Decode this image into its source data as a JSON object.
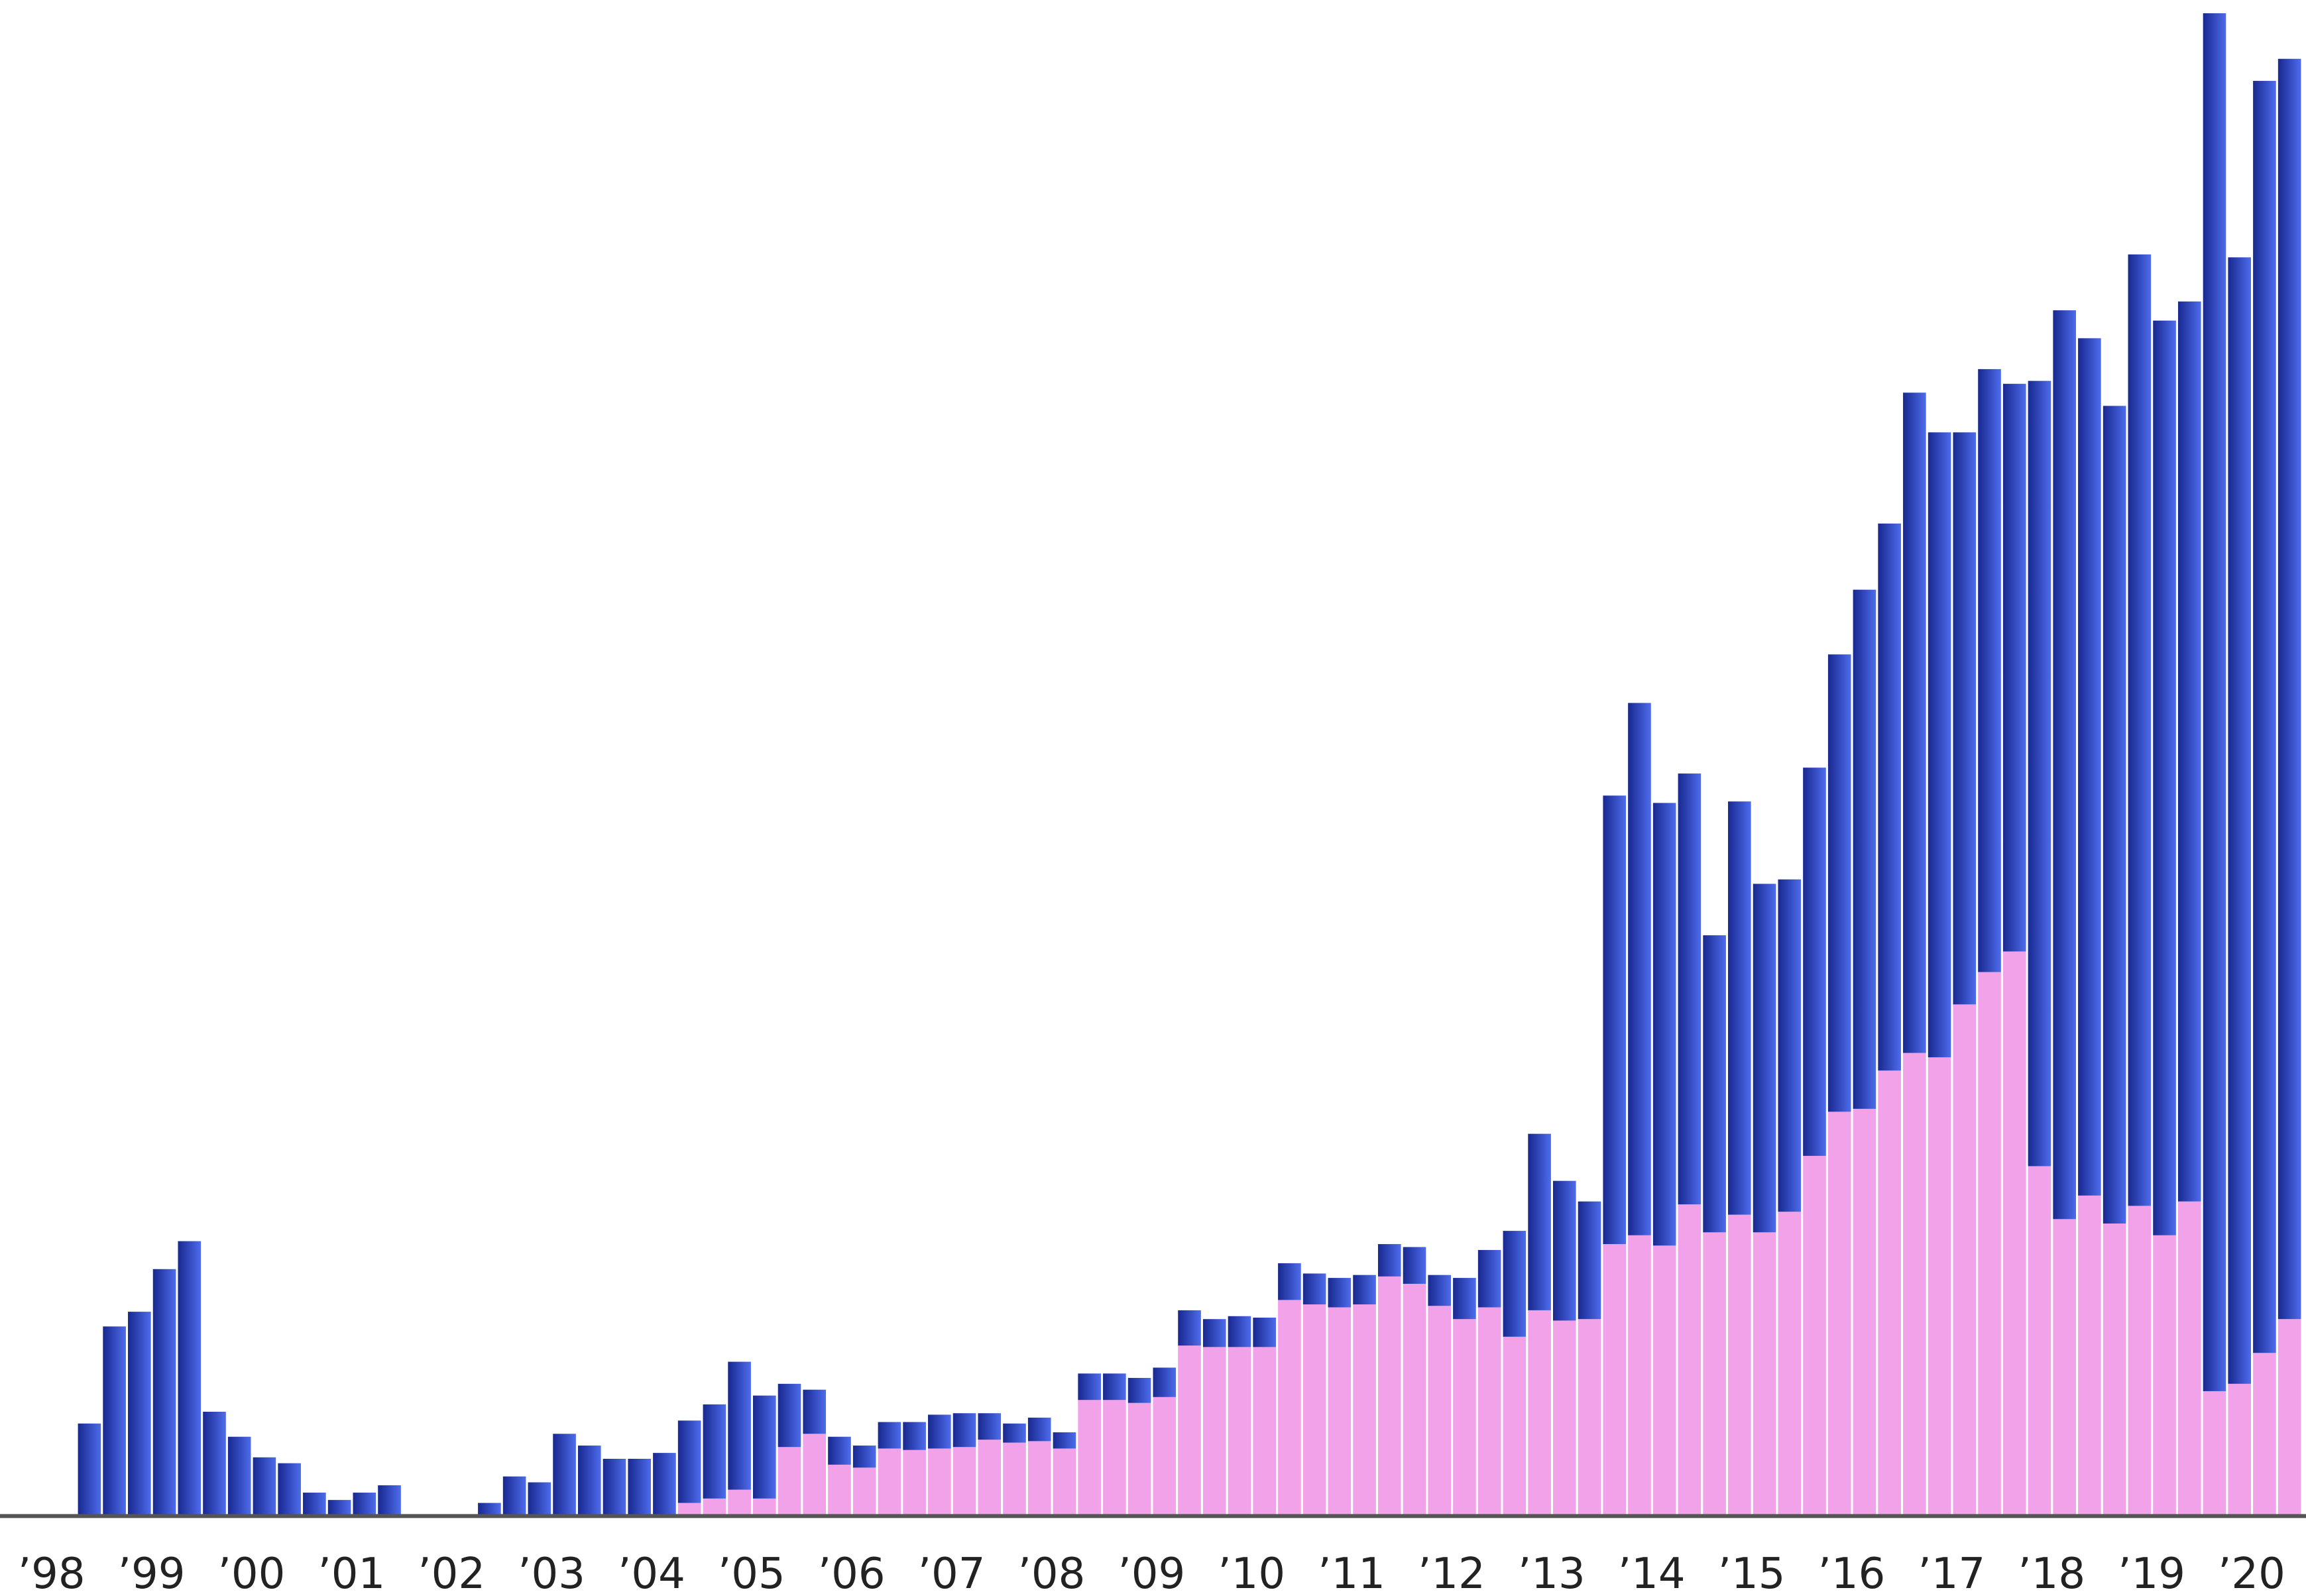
{
  "chart_data": {
    "type": "bar",
    "categories": [
      "’98",
      null,
      null,
      null,
      "’99",
      null,
      null,
      null,
      "’00",
      null,
      null,
      null,
      "’01",
      null,
      null,
      null,
      "’02",
      null,
      null,
      null,
      "’03",
      null,
      null,
      null,
      "’04",
      null,
      null,
      null,
      "’05",
      null,
      null,
      null,
      "’06",
      null,
      null,
      null,
      "’07",
      null,
      null,
      null,
      "’08",
      null,
      null,
      null,
      "’09",
      null,
      null,
      null,
      "’10",
      null,
      null,
      null,
      "’11",
      null,
      null,
      null,
      "’12",
      null,
      null,
      null,
      "’13",
      null,
      null,
      null,
      "’14",
      null,
      null,
      null,
      "’15",
      null,
      null,
      null,
      "’16",
      null,
      null,
      null,
      "’17",
      null,
      null,
      null,
      "’18",
      null,
      null,
      null,
      "’19",
      null,
      null,
      null,
      "’20",
      null,
      null,
      null
    ],
    "series": [
      {
        "color": "#f2a2e8",
        "values": [
          0,
          0,
          0,
          0,
          0,
          0,
          0,
          0,
          0,
          0,
          0,
          0,
          0,
          0,
          0,
          0,
          0,
          0,
          0,
          0,
          0,
          0,
          0,
          0,
          0,
          0,
          0,
          8,
          11,
          17,
          11,
          46,
          55,
          34,
          32,
          45,
          44,
          45,
          46,
          51,
          49,
          50,
          45,
          78,
          78,
          76,
          80,
          115,
          114,
          114,
          114,
          146,
          143,
          141,
          143,
          162,
          157,
          142,
          133,
          141,
          121,
          139,
          132,
          133,
          184,
          190,
          183,
          211,
          192,
          204,
          192,
          206,
          244,
          274,
          276,
          302,
          314,
          311,
          347,
          369,
          383,
          237,
          201,
          217,
          198,
          210,
          190,
          213,
          84,
          89,
          110,
          133
        ]
      },
      {
        "color": "#2c3cc2",
        "values": [
          0,
          0,
          0,
          62,
          128,
          138,
          167,
          186,
          70,
          53,
          39,
          35,
          15,
          10,
          15,
          20,
          0,
          0,
          0,
          8,
          26,
          22,
          55,
          47,
          38,
          38,
          42,
          56,
          64,
          87,
          70,
          43,
          30,
          19,
          15,
          18,
          19,
          23,
          23,
          18,
          13,
          16,
          11,
          18,
          18,
          17,
          20,
          24,
          19,
          21,
          20,
          25,
          21,
          20,
          20,
          22,
          25,
          21,
          28,
          39,
          72,
          120,
          95,
          80,
          305,
          362,
          301,
          293,
          202,
          281,
          237,
          226,
          264,
          311,
          353,
          372,
          449,
          425,
          389,
          410,
          386,
          534,
          618,
          583,
          556,
          647,
          622,
          612,
          937,
          766,
          865,
          857
        ]
      }
    ],
    "ylim": [
      0,
      1030
    ],
    "stacked": true
  }
}
